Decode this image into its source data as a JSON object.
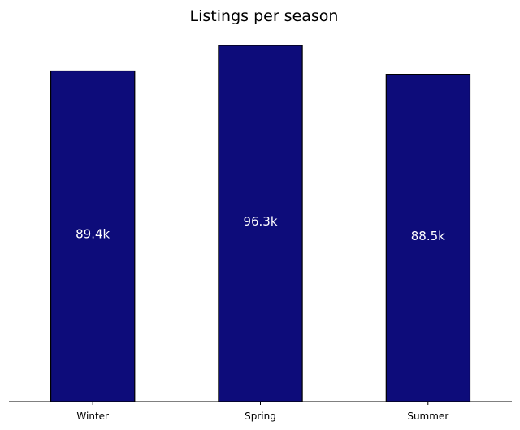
{
  "chart_data": {
    "type": "bar",
    "title": "Listings per season",
    "xlabel": "",
    "ylabel": "",
    "categories": [
      "Winter",
      "Spring",
      "Summer"
    ],
    "values": [
      89400,
      96300,
      88500
    ],
    "data_labels": [
      "89.4k",
      "96.3k",
      "88.5k"
    ],
    "ylim": [
      0,
      96300
    ],
    "y_axis_visible": false,
    "grid": false,
    "legend": "none",
    "colors": {
      "bar_fill": "#0d0c7a",
      "bar_edge": "#000000",
      "label_text": "#ffffff",
      "axis": "#000000"
    }
  }
}
